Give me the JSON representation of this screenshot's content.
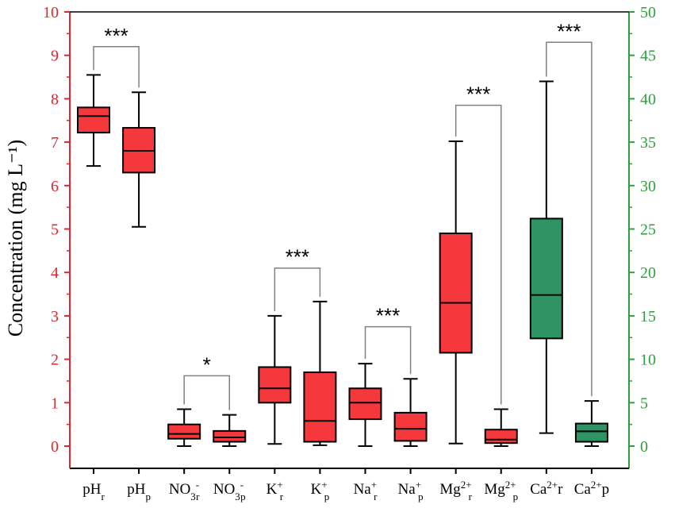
{
  "chart_data": {
    "type": "box",
    "ylabel": "Concentration (mg L⁻¹)",
    "ylim": [
      0,
      10
    ],
    "yticks": [
      0,
      1,
      2,
      3,
      4,
      5,
      6,
      7,
      8,
      9,
      10
    ],
    "y2lim": [
      0,
      50
    ],
    "y2ticks": [
      0,
      5,
      10,
      15,
      20,
      25,
      30,
      35,
      40,
      45,
      50
    ],
    "colors": {
      "left_axis": "#e0262c",
      "right_axis": "#2e9e3f",
      "box_red": "#f4383c",
      "box_green": "#2e9463",
      "bracket": "#808080"
    },
    "categories": [
      {
        "base": "pH",
        "sup": "",
        "sub": "r",
        "axis": "left",
        "color": "red",
        "whisker_low": 6.45,
        "q1": 7.22,
        "median": 7.6,
        "q3": 7.8,
        "whisker_high": 8.55
      },
      {
        "base": "pH",
        "sup": "",
        "sub": "p",
        "axis": "left",
        "color": "red",
        "whisker_low": 5.05,
        "q1": 6.3,
        "median": 6.8,
        "q3": 7.33,
        "whisker_high": 8.15
      },
      {
        "base": "NO",
        "base_sub": "3",
        "sup": "-",
        "sub": "r",
        "axis": "left",
        "color": "red",
        "whisker_low": 0.0,
        "q1": 0.17,
        "median": 0.28,
        "q3": 0.5,
        "whisker_high": 0.85
      },
      {
        "base": "NO",
        "base_sub": "3",
        "sup": "-",
        "sub": "p",
        "axis": "left",
        "color": "red",
        "whisker_low": 0.0,
        "q1": 0.1,
        "median": 0.2,
        "q3": 0.35,
        "whisker_high": 0.72
      },
      {
        "base": "K",
        "sup": "+",
        "sub": "r",
        "axis": "left",
        "color": "red",
        "whisker_low": 0.05,
        "q1": 1.0,
        "median": 1.33,
        "q3": 1.82,
        "whisker_high": 3.0
      },
      {
        "base": "K",
        "sup": "+",
        "sub": "p",
        "axis": "left",
        "color": "red",
        "whisker_low": 0.02,
        "q1": 0.1,
        "median": 0.58,
        "q3": 1.7,
        "whisker_high": 3.33
      },
      {
        "base": "Na",
        "sup": "+",
        "sub": "r",
        "axis": "left",
        "color": "red",
        "whisker_low": 0.0,
        "q1": 0.62,
        "median": 1.0,
        "q3": 1.33,
        "whisker_high": 1.9
      },
      {
        "base": "Na",
        "sup": "+",
        "sub": "p",
        "axis": "left",
        "color": "red",
        "whisker_low": 0.0,
        "q1": 0.12,
        "median": 0.4,
        "q3": 0.77,
        "whisker_high": 1.55
      },
      {
        "base": "Mg",
        "sup": "2+",
        "sub": "r",
        "axis": "left",
        "color": "red",
        "whisker_low": 0.06,
        "q1": 2.15,
        "median": 3.3,
        "q3": 4.9,
        "whisker_high": 7.02
      },
      {
        "base": "Mg",
        "sup": "2+",
        "sub": "p",
        "axis": "left",
        "color": "red",
        "whisker_low": 0.0,
        "q1": 0.07,
        "median": 0.15,
        "q3": 0.38,
        "whisker_high": 0.85
      },
      {
        "base": "Ca",
        "sup": "2+",
        "sub": "",
        "suffix": "r",
        "axis": "right",
        "color": "green",
        "whisker_low": 1.5,
        "q1": 12.4,
        "median": 17.4,
        "q3": 26.2,
        "whisker_high": 42.0
      },
      {
        "base": "Ca",
        "sup": "2+",
        "sub": "",
        "suffix": "p",
        "axis": "right",
        "color": "green",
        "whisker_low": 0.0,
        "q1": 0.5,
        "median": 1.7,
        "q3": 2.6,
        "whisker_high": 5.2
      }
    ],
    "comparisons": [
      {
        "from": 0,
        "to": 1,
        "label": "***",
        "top": 9.2
      },
      {
        "from": 2,
        "to": 3,
        "label": "*",
        "top": 1.62
      },
      {
        "from": 4,
        "to": 5,
        "label": "***",
        "top": 4.1
      },
      {
        "from": 6,
        "to": 7,
        "label": "***",
        "top": 2.75
      },
      {
        "from": 8,
        "to": 9,
        "label": "***",
        "top": 7.85
      },
      {
        "from": 10,
        "to": 11,
        "label": "***",
        "top": 9.3
      }
    ]
  }
}
